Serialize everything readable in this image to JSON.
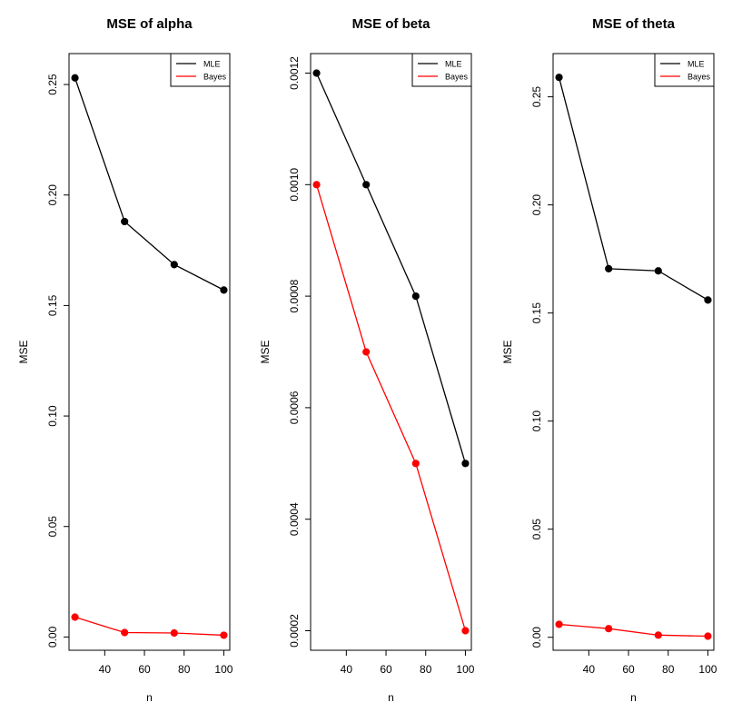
{
  "chart_data": [
    {
      "type": "line",
      "title": "MSE of alpha",
      "xlabel": "n",
      "ylabel": "MSE",
      "x": [
        25,
        50,
        75,
        100
      ],
      "xticks": [
        40,
        60,
        80,
        100
      ],
      "xlim": [
        22,
        103
      ],
      "ylim": [
        -0.006,
        0.264
      ],
      "yticks": [
        0.0,
        0.05,
        0.1,
        0.15,
        0.2,
        0.25
      ],
      "yticklabels": [
        "0.00",
        "0.05",
        "0.10",
        "0.15",
        "0.20",
        "0.25"
      ],
      "series": [
        {
          "name": "MLE",
          "color": "#000000",
          "values": [
            0.253,
            0.188,
            0.1685,
            0.157
          ]
        },
        {
          "name": "Bayes",
          "color": "#ff0000",
          "values": [
            0.009,
            0.002,
            0.0018,
            0.0008
          ]
        }
      ],
      "legend": {
        "position": "top-right",
        "entries": [
          "MLE",
          "Bayes"
        ]
      }
    },
    {
      "type": "line",
      "title": "MSE of beta",
      "xlabel": "n",
      "ylabel": "MSE",
      "x": [
        25,
        50,
        75,
        100
      ],
      "xticks": [
        40,
        60,
        80,
        100
      ],
      "xlim": [
        22,
        103
      ],
      "ylim": [
        0.000165,
        0.001235
      ],
      "yticks": [
        0.0002,
        0.0004,
        0.0006,
        0.0008,
        0.001,
        0.0012
      ],
      "yticklabels": [
        "0.0002",
        "0.0004",
        "0.0006",
        "0.0008",
        "0.0010",
        "0.0012"
      ],
      "series": [
        {
          "name": "MLE",
          "color": "#000000",
          "values": [
            0.0012,
            0.001,
            0.0008,
            0.0005
          ]
        },
        {
          "name": "Bayes",
          "color": "#ff0000",
          "values": [
            0.001,
            0.0007,
            0.0005,
            0.0002
          ]
        }
      ],
      "legend": {
        "position": "top-right",
        "entries": [
          "MLE",
          "Bayes"
        ]
      }
    },
    {
      "type": "line",
      "title": "MSE of theta",
      "xlabel": "n",
      "ylabel": "MSE",
      "x": [
        25,
        50,
        75,
        100
      ],
      "xticks": [
        40,
        60,
        80,
        100
      ],
      "xlim": [
        22,
        103
      ],
      "ylim": [
        -0.006,
        0.27
      ],
      "yticks": [
        0.0,
        0.05,
        0.1,
        0.15,
        0.2,
        0.25
      ],
      "yticklabels": [
        "0.00",
        "0.05",
        "0.10",
        "0.15",
        "0.20",
        "0.25"
      ],
      "series": [
        {
          "name": "MLE",
          "color": "#000000",
          "values": [
            0.259,
            0.1705,
            0.1695,
            0.156
          ]
        },
        {
          "name": "Bayes",
          "color": "#ff0000",
          "values": [
            0.006,
            0.004,
            0.001,
            0.0005
          ]
        }
      ],
      "legend": {
        "position": "top-right",
        "entries": [
          "MLE",
          "Bayes"
        ]
      }
    }
  ]
}
